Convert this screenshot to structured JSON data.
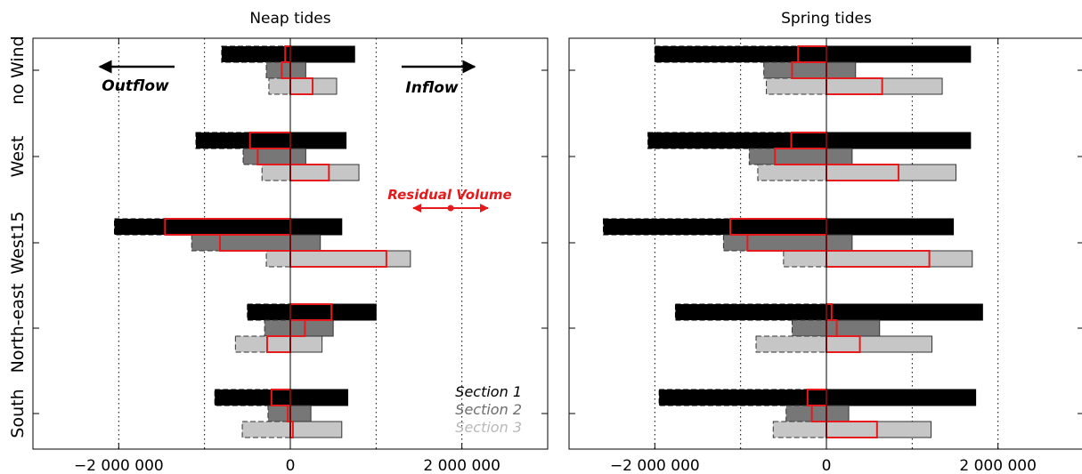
{
  "chart_data": [
    {
      "type": "bar",
      "title": "Neap tides",
      "orientation": "horizontal",
      "categories": [
        "no Wind",
        "West",
        "West15",
        "North-east",
        "South"
      ],
      "xlim": [
        -3000000,
        3000000
      ],
      "xticks": [
        -2000000,
        0,
        2000000
      ],
      "xtick_labels": [
        "−2 000 000",
        "0",
        "2 000 000"
      ],
      "grid": "vertical dotted",
      "series": [
        {
          "name": "Section 1",
          "outflow": [
            -800000,
            -1100000,
            -2050000,
            -500000,
            -880000
          ],
          "inflow": [
            750000,
            650000,
            600000,
            1000000,
            670000
          ]
        },
        {
          "name": "Section 2",
          "outflow": [
            -280000,
            -550000,
            -1150000,
            -300000,
            -260000
          ],
          "inflow": [
            180000,
            180000,
            350000,
            500000,
            240000
          ]
        },
        {
          "name": "Section 3",
          "outflow": [
            -250000,
            -330000,
            -280000,
            -640000,
            -560000
          ],
          "inflow": [
            540000,
            800000,
            1400000,
            370000,
            600000
          ]
        }
      ],
      "residual_volume": [
        [
          -60000,
          -100000,
          260000
        ],
        [
          -470000,
          -380000,
          450000
        ],
        [
          -1460000,
          -820000,
          1120000
        ],
        [
          480000,
          170000,
          -270000
        ],
        [
          -220000,
          -30000,
          30000
        ]
      ],
      "annotations": {
        "outflow": "Outflow",
        "inflow": "Inflow",
        "residual": "Residual Volume"
      }
    },
    {
      "type": "bar",
      "title": "Spring tides",
      "orientation": "horizontal",
      "categories": [
        "no Wind",
        "West",
        "West15",
        "North-east",
        "South"
      ],
      "xlim": [
        -3000000,
        3000000
      ],
      "xticks": [
        -2000000,
        0,
        2000000
      ],
      "xtick_labels": [
        "−2 000 000",
        "0",
        "2 000 000"
      ],
      "grid": "vertical dotted",
      "series": [
        {
          "name": "Section 1",
          "outflow": [
            -2000000,
            -2080000,
            -2600000,
            -1760000,
            -1950000
          ],
          "inflow": [
            1680000,
            1680000,
            1480000,
            1820000,
            1740000
          ]
        },
        {
          "name": "Section 2",
          "outflow": [
            -730000,
            -900000,
            -1200000,
            -400000,
            -470000
          ],
          "inflow": [
            340000,
            300000,
            300000,
            620000,
            260000
          ]
        },
        {
          "name": "Section 3",
          "outflow": [
            -700000,
            -800000,
            -500000,
            -820000,
            -620000
          ],
          "inflow": [
            1350000,
            1510000,
            1700000,
            1230000,
            1220000
          ]
        }
      ],
      "residual_volume": [
        [
          -330000,
          -400000,
          650000
        ],
        [
          -410000,
          -600000,
          840000
        ],
        [
          -1120000,
          -920000,
          1200000
        ],
        [
          60000,
          120000,
          390000
        ],
        [
          -220000,
          -170000,
          590000
        ]
      ]
    }
  ],
  "legend": {
    "placement": "bottom-right",
    "entries": [
      "Section 1",
      "Section 2",
      "Section 3"
    ]
  },
  "colors": {
    "section1": "#000000",
    "section2": "#777777",
    "section3": "#c6c6c6",
    "residual": "#e41a1c"
  }
}
